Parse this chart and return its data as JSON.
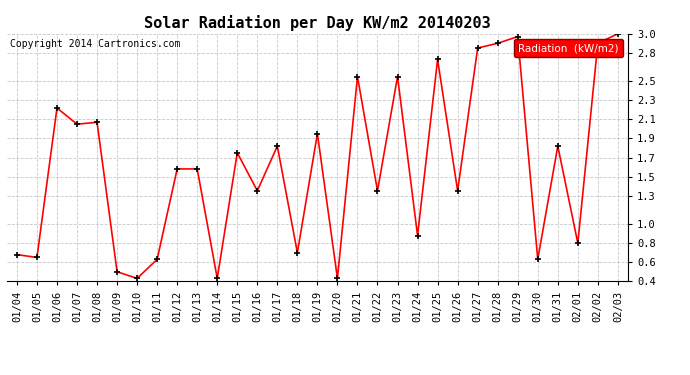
{
  "title": "Solar Radiation per Day KW/m2 20140203",
  "copyright": "Copyright 2014 Cartronics.com",
  "legend_label": "Radiation  (kW/m2)",
  "dates": [
    "01/04",
    "01/05",
    "01/06",
    "01/07",
    "01/08",
    "01/09",
    "01/10",
    "01/11",
    "01/12",
    "01/13",
    "01/14",
    "01/15",
    "01/16",
    "01/17",
    "01/18",
    "01/19",
    "01/20",
    "01/21",
    "01/22",
    "01/23",
    "01/24",
    "01/25",
    "01/26",
    "01/27",
    "01/28",
    "01/29",
    "01/30",
    "01/31",
    "02/01",
    "02/02",
    "02/03"
  ],
  "values": [
    0.68,
    0.65,
    2.22,
    2.05,
    2.07,
    0.5,
    0.43,
    0.63,
    1.58,
    1.58,
    0.43,
    1.75,
    1.35,
    1.82,
    0.7,
    1.95,
    0.43,
    2.55,
    1.35,
    2.55,
    0.88,
    2.73,
    1.35,
    2.85,
    2.9,
    2.97,
    0.63,
    1.82,
    0.8,
    2.9,
    3.0
  ],
  "line_color": "#ff0000",
  "marker_color": "#000000",
  "bg_color": "#ffffff",
  "grid_color": "#bbbbbb",
  "ylim": [
    0.4,
    3.0
  ],
  "yticks": [
    0.4,
    0.6,
    0.8,
    1.0,
    1.3,
    1.5,
    1.7,
    1.9,
    2.1,
    2.3,
    2.5,
    2.8,
    3.0
  ],
  "title_fontsize": 11,
  "tick_fontsize": 7.5,
  "copyright_fontsize": 7
}
